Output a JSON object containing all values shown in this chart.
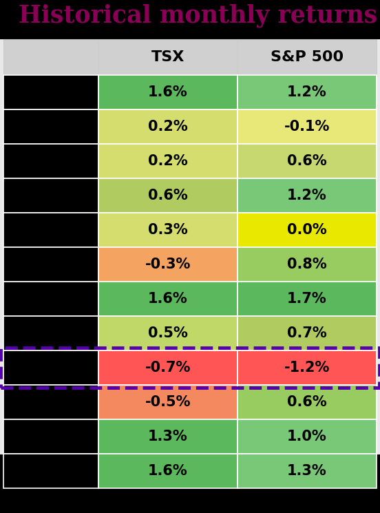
{
  "title": "Historical monthly returns",
  "title_color": "#8b0057",
  "col_headers": [
    "TSX",
    "S&P 500"
  ],
  "tsx_values": [
    "1.6%",
    "0.2%",
    "0.2%",
    "0.6%",
    "0.3%",
    "-0.3%",
    "1.6%",
    "0.5%",
    "-0.7%",
    "-0.5%",
    "1.3%",
    "1.6%"
  ],
  "sp500_values": [
    "1.2%",
    "-0.1%",
    "0.6%",
    "1.2%",
    "0.0%",
    "0.8%",
    "1.7%",
    "0.7%",
    "-1.2%",
    "0.6%",
    "1.0%",
    "1.3%"
  ],
  "tsx_colors": [
    "#5cb85c",
    "#d4dd6e",
    "#d4dd6e",
    "#b0cc60",
    "#d4dd6e",
    "#f4a460",
    "#5cb85c",
    "#c0d868",
    "#ff5555",
    "#f4895f",
    "#5cb85c",
    "#5cb85c"
  ],
  "sp500_colors": [
    "#78c878",
    "#e8e878",
    "#c8d870",
    "#78c878",
    "#e8e800",
    "#98cc60",
    "#5cb85c",
    "#b0cc60",
    "#ff5555",
    "#98cc60",
    "#78c878",
    "#78c878"
  ],
  "header_bg": "#d0d0d0",
  "left_col_color": "#000000",
  "highlight_row": 8,
  "highlight_border_color": "#5500aa",
  "title_bg": "#000000",
  "table_bg": "#e8e8e8"
}
